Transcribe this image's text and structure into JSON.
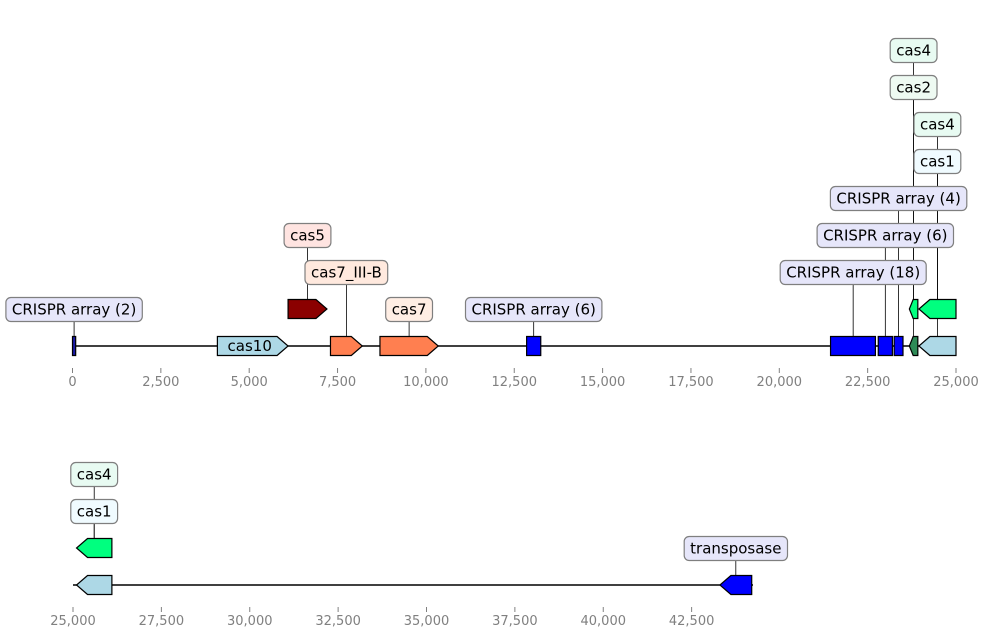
{
  "rows": [
    {
      "range": [
        0,
        25000
      ],
      "ticks": [
        0,
        2500,
        5000,
        7500,
        10000,
        12500,
        15000,
        17500,
        20000,
        22500,
        25000
      ],
      "tick_labels": [
        "0",
        "2,500",
        "5,000",
        "7,500",
        "10,000",
        "12,500",
        "15,000",
        "17,500",
        "20,000",
        "22,500",
        "25,000"
      ],
      "features": [
        {
          "start": 0,
          "end": 90,
          "strand": 0,
          "level": 0,
          "color": "#1a1aa6",
          "label": "CRISPR array (2)",
          "label_bg": "#e6e6fa",
          "label_level": 1
        },
        {
          "start": 4100,
          "end": 6100,
          "strand": 1,
          "level": 0,
          "color": "#add8e6",
          "label": "cas10",
          "inline": true
        },
        {
          "start": 6100,
          "end": 7200,
          "strand": 1,
          "level": 1,
          "color": "#8b0000"
        },
        {
          "start": 7300,
          "end": 8200,
          "strand": 1,
          "level": 0,
          "color": "#ff7f50",
          "label": "cas7_III-B",
          "label_bg": "#ffe9de",
          "label_level": 2
        },
        {
          "start": 8700,
          "end": 10350,
          "strand": 1,
          "level": 0,
          "color": "#ff7f50",
          "label": "cas7",
          "label_bg": "#ffeee4",
          "label_level": 1
        },
        {
          "start": 12850,
          "end": 13250,
          "strand": 0,
          "level": 0,
          "color": "#0000ff",
          "label": "CRISPR array (6)",
          "label_bg": "#e6e6fa",
          "label_level": 1
        },
        {
          "start": 21450,
          "end": 22720,
          "strand": 0,
          "level": 0,
          "color": "#0000ff"
        },
        {
          "start": 22800,
          "end": 23200,
          "strand": 0,
          "level": 0,
          "color": "#0000ff"
        },
        {
          "start": 23250,
          "end": 23500,
          "strand": 0,
          "level": 0,
          "color": "#0000ff"
        },
        {
          "start": 23680,
          "end": 23920,
          "strand": -1,
          "level": 0,
          "color": "#2e8b57"
        },
        {
          "start": 23950,
          "end": 25000,
          "strand": -1,
          "level": 0,
          "color": "#add8e6"
        },
        {
          "start": 23680,
          "end": 23920,
          "strand": -1,
          "level": 1,
          "color": "#00ff7f"
        },
        {
          "start": 23950,
          "end": 25000,
          "strand": -1,
          "level": 1,
          "color": "#00ff7f"
        }
      ],
      "labels": [
        {
          "text": "cas5",
          "bg": "#ffe4e1",
          "level": 3,
          "pos": 6650,
          "anchor_level": 1
        },
        {
          "text": "CRISPR array (18)",
          "bg": "#e6e6fa",
          "level": 2,
          "pos": 22090,
          "anchor_level": 0
        },
        {
          "text": "CRISPR array (6)",
          "bg": "#e6e6fa",
          "level": 3,
          "pos": 23000,
          "anchor_level": 0
        },
        {
          "text": "CRISPR array (4)",
          "bg": "#e6e6fa",
          "level": 4,
          "pos": 23375,
          "anchor_level": 0
        },
        {
          "text": "cas1",
          "bg": "#f0fbff",
          "level": 5,
          "pos": 24475,
          "anchor_level": 0
        },
        {
          "text": "cas4",
          "bg": "#e8fbf2",
          "level": 6,
          "pos": 24475,
          "anchor_level": 1
        },
        {
          "text": "cas2",
          "bg": "#eefaf2",
          "level": 7,
          "pos": 23800,
          "anchor_level": 0
        },
        {
          "text": "cas4",
          "bg": "#e8fbf2",
          "level": 8,
          "pos": 23800,
          "anchor_level": 1
        }
      ]
    },
    {
      "range": [
        25000,
        44200
      ],
      "ticks": [
        25000,
        27500,
        30000,
        32500,
        35000,
        37500,
        40000,
        42500
      ],
      "tick_labels": [
        "25,000",
        "27,500",
        "30,000",
        "32,500",
        "35,000",
        "37,500",
        "40,000",
        "42,500"
      ],
      "features": [
        {
          "start": 25100,
          "end": 26100,
          "strand": -1,
          "level": 0,
          "color": "#add8e6"
        },
        {
          "start": 25100,
          "end": 26100,
          "strand": -1,
          "level": 1,
          "color": "#00ff7f"
        },
        {
          "start": 43300,
          "end": 44200,
          "strand": -1,
          "level": 0,
          "color": "#0000ff",
          "label": "transposase",
          "label_bg": "#e6e6fa",
          "label_level": 1
        }
      ],
      "labels": [
        {
          "text": "cas1",
          "bg": "#f0fbff",
          "level": 2,
          "pos": 25600,
          "anchor_level": 1
        },
        {
          "text": "cas4",
          "bg": "#e8fbf2",
          "level": 3,
          "pos": 25600,
          "anchor_level": 1
        }
      ]
    }
  ]
}
